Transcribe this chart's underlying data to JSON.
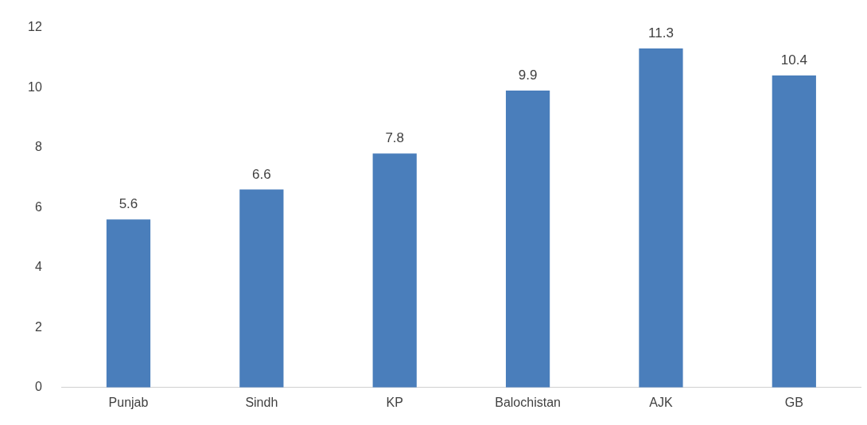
{
  "chart_data": {
    "type": "bar",
    "categories": [
      "Punjab",
      "Sindh",
      "KP",
      "Balochistan",
      "AJK",
      "GB"
    ],
    "values": [
      5.6,
      6.6,
      7.8,
      9.9,
      11.3,
      10.4
    ],
    "color": "#4a7ebb",
    "ylim": [
      0,
      12
    ],
    "yticks": [
      0,
      2,
      4,
      6,
      8,
      10,
      12
    ],
    "grid": false,
    "legend": false,
    "data_labels": true
  }
}
